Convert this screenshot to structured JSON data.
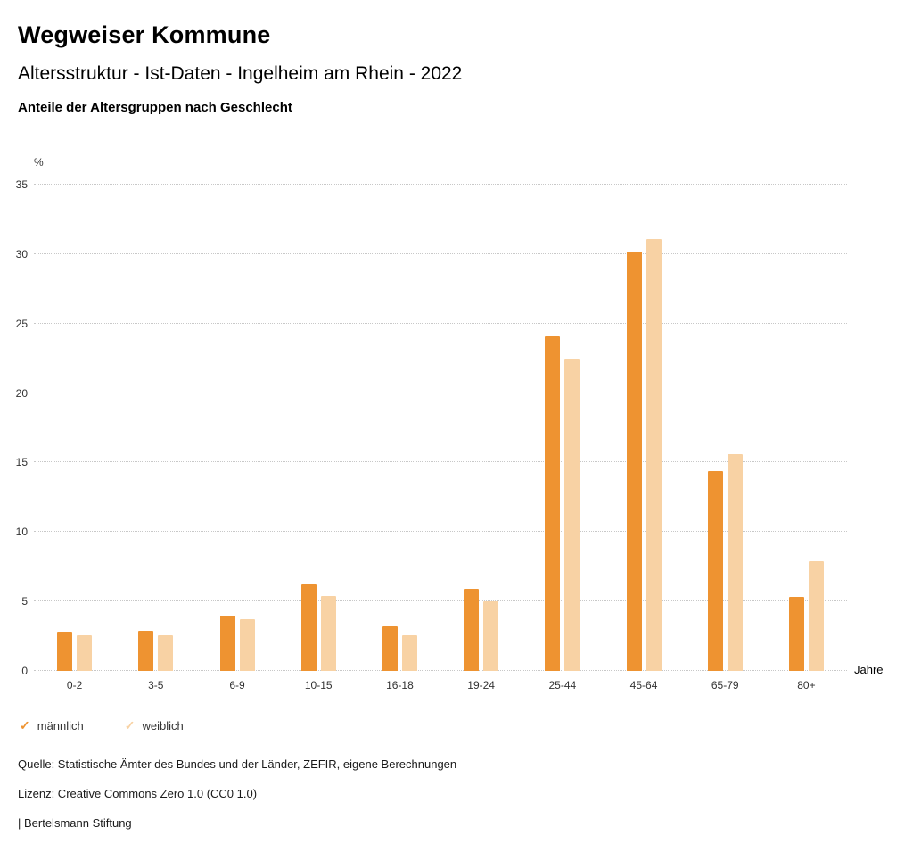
{
  "page": {
    "title": "Wegweiser Kommune",
    "subtitle": "Altersstruktur - Ist-Daten - Ingelheim am Rhein - 2022"
  },
  "chart_data": {
    "type": "bar",
    "title": "Anteile der Altersgruppen nach Geschlecht",
    "categories": [
      "0-2",
      "3-5",
      "6-9",
      "10-15",
      "16-18",
      "19-24",
      "25-44",
      "45-64",
      "65-79",
      "80+"
    ],
    "series": [
      {
        "name": "männlich",
        "color": "#ee9331",
        "values": [
          2.8,
          2.9,
          4.0,
          6.2,
          3.2,
          5.9,
          24.1,
          30.2,
          14.4,
          5.3
        ]
      },
      {
        "name": "weiblich",
        "color": "#f8d2a4",
        "values": [
          2.6,
          2.6,
          3.7,
          5.4,
          2.6,
          5.0,
          22.5,
          31.1,
          15.6,
          7.9
        ]
      }
    ],
    "ylabel": "%",
    "xlabel": "Jahre",
    "ylim": [
      0,
      35
    ],
    "yticks": [
      0,
      5,
      10,
      15,
      20,
      25,
      30,
      35
    ],
    "grid": true,
    "gridline_color": "#c8c8c8",
    "legend_position": "bottom"
  },
  "legend": {
    "items": [
      {
        "label": "männlich",
        "color": "#ee9331",
        "icon": "check-icon",
        "glyph": "✓"
      },
      {
        "label": "weiblich",
        "color": "#f8d2a4",
        "icon": "check-icon",
        "glyph": "✓"
      }
    ]
  },
  "footer": {
    "source": "Quelle: Statistische Ämter des Bundes und der Länder, ZEFIR, eigene Berechnungen",
    "license": "Lizenz: Creative Commons Zero 1.0 (CC0 1.0)",
    "attribution": "| Bertelsmann Stiftung"
  }
}
